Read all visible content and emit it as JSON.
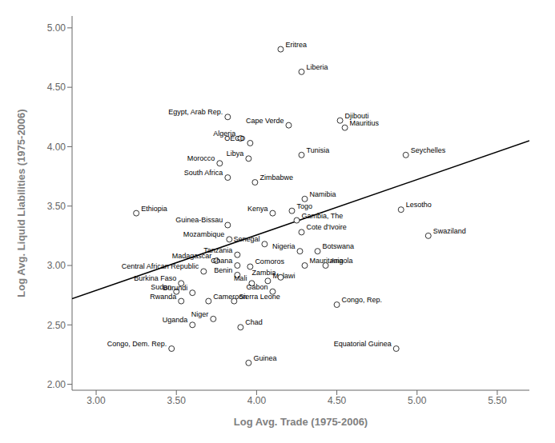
{
  "chart_data": {
    "type": "scatter",
    "xlabel": "Log Avg. Trade (1975-2006)",
    "ylabel": "Log Avg. Liquid Liabilities (1975-2006)",
    "xlim": [
      2.85,
      5.7
    ],
    "ylim": [
      1.95,
      5.1
    ],
    "xticks": [
      {
        "value": 3.0,
        "label": "3.00"
      },
      {
        "value": 3.5,
        "label": "3.50"
      },
      {
        "value": 4.0,
        "label": "4.00"
      },
      {
        "value": 4.5,
        "label": "4.50"
      },
      {
        "value": 5.0,
        "label": "5.00"
      },
      {
        "value": 5.5,
        "label": "5.50"
      }
    ],
    "yticks": [
      {
        "value": 2.0,
        "label": "2.00"
      },
      {
        "value": 2.5,
        "label": "2.50"
      },
      {
        "value": 3.0,
        "label": "3.00"
      },
      {
        "value": 3.5,
        "label": "3.50"
      },
      {
        "value": 4.0,
        "label": "4.00"
      },
      {
        "value": 4.5,
        "label": "4.50"
      },
      {
        "value": 5.0,
        "label": "5.00"
      }
    ],
    "grid": false,
    "color": "#000000",
    "marker": "hollow circle",
    "trend_line": {
      "x": [
        2.85,
        5.7
      ],
      "y": [
        2.72,
        4.05
      ]
    },
    "points": [
      {
        "name": "Eritrea",
        "x": 4.15,
        "y": 4.82
      },
      {
        "name": "Liberia",
        "x": 4.28,
        "y": 4.63
      },
      {
        "name": "Djibouti",
        "x": 4.52,
        "y": 4.22
      },
      {
        "name": "Cape Verde",
        "x": 4.2,
        "y": 4.18
      },
      {
        "name": "Mauritius",
        "x": 4.55,
        "y": 4.16
      },
      {
        "name": "Egypt, Arab Rep.",
        "x": 3.82,
        "y": 4.25
      },
      {
        "name": "Algeria",
        "x": 3.9,
        "y": 4.07
      },
      {
        "name": "OECD",
        "x": 3.96,
        "y": 4.03
      },
      {
        "name": "Morocco",
        "x": 3.77,
        "y": 3.86
      },
      {
        "name": "Libya",
        "x": 3.95,
        "y": 3.9
      },
      {
        "name": "Tunisia",
        "x": 4.28,
        "y": 3.93
      },
      {
        "name": "Seychelles",
        "x": 4.93,
        "y": 3.93
      },
      {
        "name": "South Africa",
        "x": 3.82,
        "y": 3.74
      },
      {
        "name": "Zimbabwe",
        "x": 3.99,
        "y": 3.7
      },
      {
        "name": "Namibia",
        "x": 4.3,
        "y": 3.56
      },
      {
        "name": "Ethiopia",
        "x": 3.25,
        "y": 3.44
      },
      {
        "name": "Kenya",
        "x": 4.1,
        "y": 3.44
      },
      {
        "name": "Togo",
        "x": 4.22,
        "y": 3.46
      },
      {
        "name": "Lesotho",
        "x": 4.9,
        "y": 3.47
      },
      {
        "name": "Gambia, The",
        "x": 4.25,
        "y": 3.38
      },
      {
        "name": "Guinea-Bissau",
        "x": 3.82,
        "y": 3.34
      },
      {
        "name": "Cote d'Ivoire",
        "x": 4.28,
        "y": 3.28
      },
      {
        "name": "Swaziland",
        "x": 5.07,
        "y": 3.25
      },
      {
        "name": "Mozambique",
        "x": 3.83,
        "y": 3.22
      },
      {
        "name": "Senegal",
        "x": 4.05,
        "y": 3.18
      },
      {
        "name": "Tanzania",
        "x": 3.88,
        "y": 3.09
      },
      {
        "name": "Nigeria",
        "x": 4.27,
        "y": 3.12
      },
      {
        "name": "Botswana",
        "x": 4.38,
        "y": 3.12
      },
      {
        "name": "Madagascar",
        "x": 3.75,
        "y": 3.04
      },
      {
        "name": "Ghana",
        "x": 3.88,
        "y": 3.0
      },
      {
        "name": "Comoros",
        "x": 3.96,
        "y": 2.99
      },
      {
        "name": "Mauritania",
        "x": 4.3,
        "y": 3.0
      },
      {
        "name": "Angola",
        "x": 4.43,
        "y": 3.0
      },
      {
        "name": "Central African Republic",
        "x": 3.67,
        "y": 2.95
      },
      {
        "name": "Benin",
        "x": 3.88,
        "y": 2.92
      },
      {
        "name": "Burkina Faso",
        "x": 3.53,
        "y": 2.85
      },
      {
        "name": "Mali",
        "x": 3.97,
        "y": 2.85
      },
      {
        "name": "Malawi",
        "x": 4.07,
        "y": 2.87
      },
      {
        "name": "Zambia",
        "x": 4.15,
        "y": 2.9
      },
      {
        "name": "Sudan",
        "x": 3.5,
        "y": 2.78
      },
      {
        "name": "Burundi",
        "x": 3.6,
        "y": 2.77
      },
      {
        "name": "Rwanda",
        "x": 3.53,
        "y": 2.7
      },
      {
        "name": "Cameroon",
        "x": 3.7,
        "y": 2.7
      },
      {
        "name": "Sierra Leone",
        "x": 3.86,
        "y": 2.7
      },
      {
        "name": "Gabon",
        "x": 4.1,
        "y": 2.78
      },
      {
        "name": "Congo, Rep.",
        "x": 4.5,
        "y": 2.67
      },
      {
        "name": "Uganda",
        "x": 3.6,
        "y": 2.5
      },
      {
        "name": "Niger",
        "x": 3.73,
        "y": 2.55
      },
      {
        "name": "Chad",
        "x": 3.9,
        "y": 2.48
      },
      {
        "name": "Congo, Dem. Rep.",
        "x": 3.47,
        "y": 2.3
      },
      {
        "name": "Guinea",
        "x": 3.95,
        "y": 2.18
      },
      {
        "name": "Equatorial Guinea",
        "x": 4.87,
        "y": 2.3
      }
    ]
  }
}
